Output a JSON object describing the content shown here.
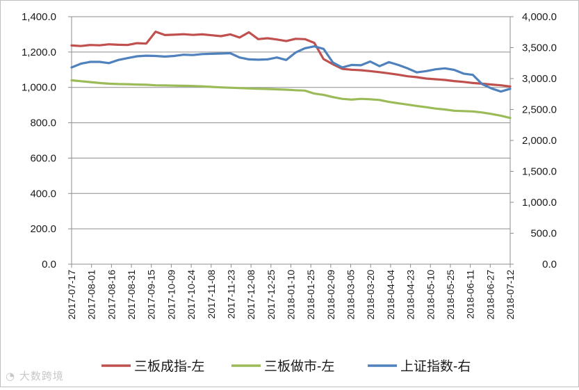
{
  "watermark": "大数跨境",
  "chart_data": {
    "type": "line",
    "title": "",
    "xlabel": "",
    "y_left": {
      "label": "",
      "min": 0,
      "max": 1400,
      "step": 200,
      "ticks": [
        "0.0",
        "200.0",
        "400.0",
        "600.0",
        "800.0",
        "1,000.0",
        "1,200.0",
        "1,400.0"
      ]
    },
    "y_right": {
      "label": "",
      "min": 0,
      "max": 4000,
      "step": 500,
      "ticks": [
        "0.0",
        "500.0",
        "1,000.0",
        "1,500.0",
        "2,000.0",
        "2,500.0",
        "3,000.0",
        "3,500.0",
        "4,000.0"
      ]
    },
    "x_ticks": [
      "2017-07-17",
      "2017-08-01",
      "2017-08-16",
      "2017-08-31",
      "2017-09-15",
      "2017-10-09",
      "2017-10-24",
      "2017-11-08",
      "2017-11-23",
      "2017-12-08",
      "2017-12-25",
      "2018-01-10",
      "2018-01-25",
      "2018-02-09",
      "2018-03-05",
      "2018-03-20",
      "2018-04-04",
      "2018-04-23",
      "2018-05-10",
      "2018-05-25",
      "2018-06-11",
      "2018-06-27",
      "2018-07-12"
    ],
    "grid": true,
    "legend_position": "bottom",
    "series": [
      {
        "name": "三板成指-左",
        "axis": "left",
        "color": "#c0504d",
        "values": [
          1237,
          1234,
          1240,
          1238,
          1244,
          1241,
          1240,
          1250,
          1248,
          1315,
          1296,
          1298,
          1301,
          1297,
          1300,
          1295,
          1290,
          1300,
          1282,
          1312,
          1273,
          1278,
          1271,
          1262,
          1275,
          1273,
          1252,
          1160,
          1131,
          1105,
          1100,
          1097,
          1092,
          1086,
          1079,
          1072,
          1063,
          1058,
          1050,
          1046,
          1042,
          1036,
          1031,
          1025,
          1021,
          1016,
          1012,
          1005
        ]
      },
      {
        "name": "三板做市-左",
        "axis": "left",
        "color": "#9bbb59",
        "values": [
          1040,
          1035,
          1030,
          1025,
          1021,
          1019,
          1018,
          1016,
          1015,
          1012,
          1011,
          1010,
          1009,
          1008,
          1006,
          1003,
          1000,
          998,
          996,
          994,
          992,
          991,
          989,
          987,
          984,
          982,
          965,
          958,
          945,
          935,
          931,
          935,
          933,
          929,
          918,
          910,
          903,
          895,
          888,
          880,
          875,
          868,
          866,
          864,
          858,
          850,
          840,
          827
        ]
      },
      {
        "name": "上证指数-右",
        "axis": "right",
        "color": "#4f81bd",
        "values": [
          3180,
          3240,
          3270,
          3270,
          3250,
          3300,
          3330,
          3360,
          3370,
          3365,
          3355,
          3365,
          3385,
          3380,
          3395,
          3400,
          3405,
          3410,
          3340,
          3310,
          3305,
          3310,
          3340,
          3300,
          3420,
          3490,
          3520,
          3480,
          3260,
          3180,
          3220,
          3215,
          3275,
          3200,
          3265,
          3220,
          3165,
          3100,
          3120,
          3150,
          3165,
          3140,
          3080,
          3060,
          2910,
          2840,
          2790,
          2835
        ]
      }
    ]
  }
}
